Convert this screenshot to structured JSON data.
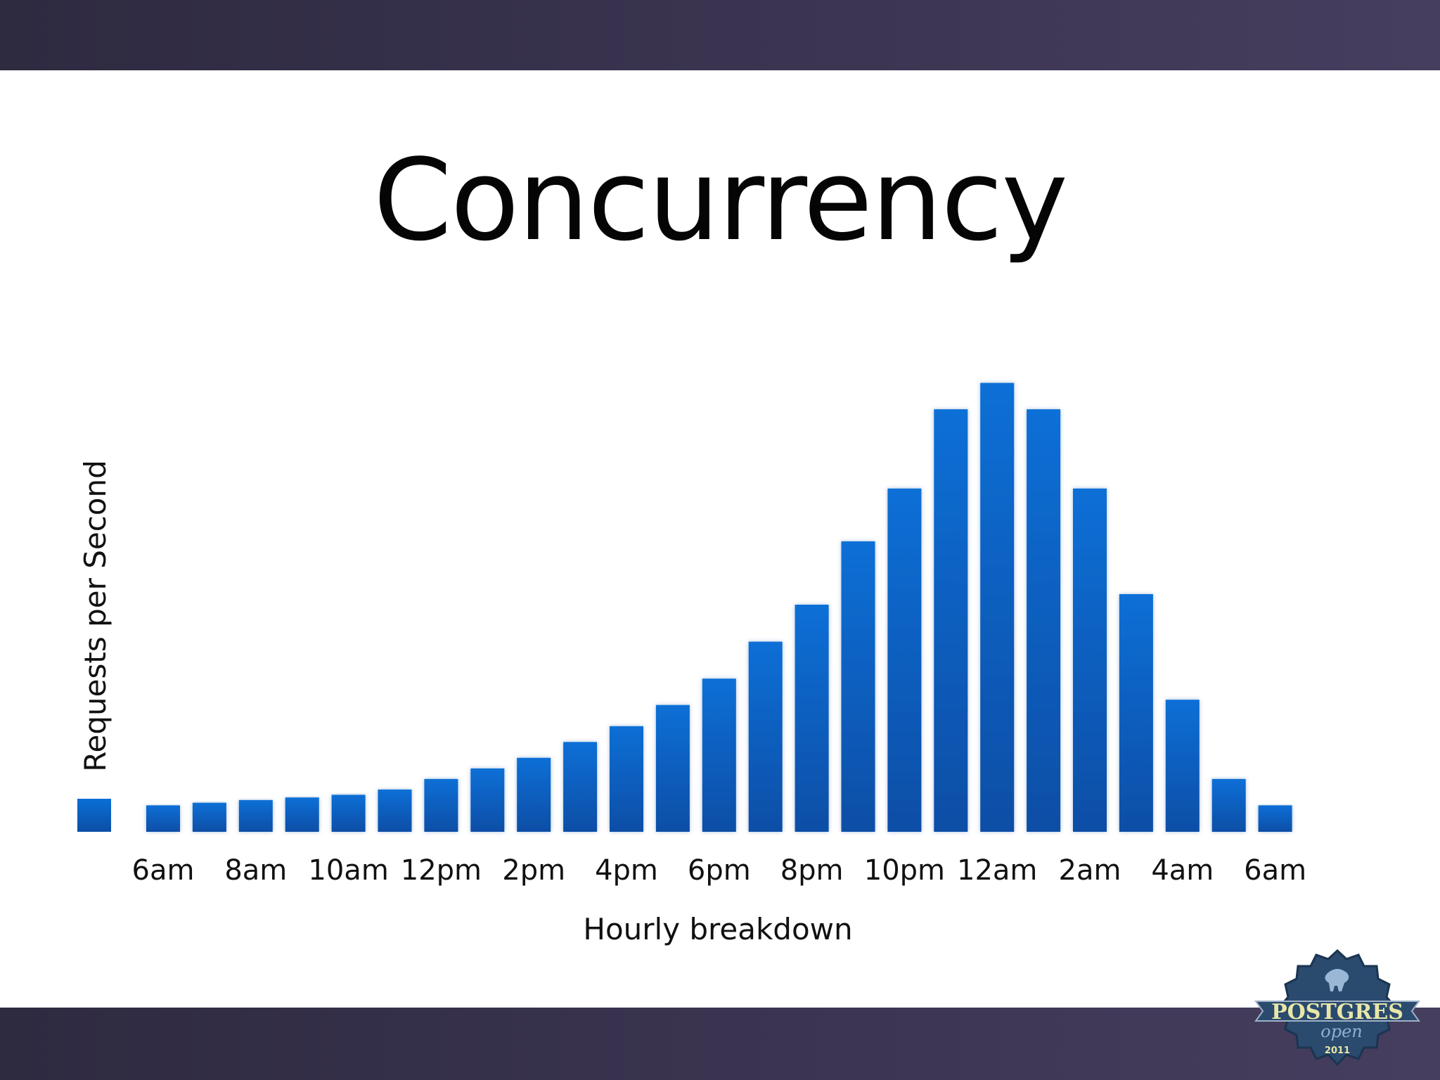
{
  "chart_data": {
    "type": "bar",
    "title": "Concurrency",
    "xlabel": "Hourly breakdown",
    "ylabel": "Requests per Second",
    "legend_swatch": true,
    "tick_labels": [
      "6am",
      "8am",
      "10am",
      "12pm",
      "2pm",
      "4pm",
      "6pm",
      "8pm",
      "10pm",
      "12am",
      "2am",
      "4am",
      "6am"
    ],
    "values": [
      5,
      5.5,
      6,
      6.5,
      7,
      8,
      10,
      12,
      14,
      17,
      20,
      24,
      29,
      36,
      43,
      55,
      65,
      80,
      85,
      80,
      65,
      45,
      25,
      10,
      5
    ],
    "ylim": [
      0,
      90
    ],
    "bar_color_top": "#0a6fd6",
    "bar_color_bottom": "#0b4ea6"
  },
  "logo": {
    "name": "postgres-open-badge",
    "text_main": "POSTGRES",
    "text_sub": "open",
    "text_year": "2011",
    "colors": {
      "badge": "#2a4a6e",
      "text": "#e8e6a8"
    }
  }
}
